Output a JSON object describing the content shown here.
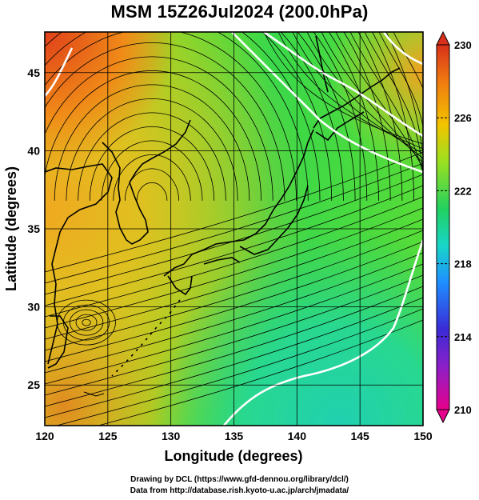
{
  "title": "MSM 15Z26Jul2024 (200.0hPa)",
  "map": {
    "xlabel": "Longitude (degrees)",
    "ylabel": "Latitude  (degrees)",
    "lon_range": [
      120,
      150
    ],
    "lat_range": [
      22.4,
      47.6
    ],
    "lon_ticks": [
      "120",
      "125",
      "130",
      "135",
      "140",
      "145",
      "150"
    ],
    "lat_ticks": [
      "25",
      "30",
      "35",
      "40",
      "45"
    ],
    "grid": "on",
    "fields": [
      "temperature shading",
      "streamlines",
      "coastlines"
    ]
  },
  "colorbar": {
    "min": 210,
    "max": 230,
    "labels": [
      "230",
      "226",
      "222",
      "218",
      "214",
      "210"
    ],
    "colors": [
      "#e8008c",
      "#3a2bd6",
      "#1e90ff",
      "#18d6c8",
      "#22d160",
      "#9be020",
      "#f2c400",
      "#f07a10",
      "#d8301a"
    ]
  },
  "credits": {
    "line1": "Drawing by DCL (https://www.gfd-dennou.org/library/dcl/)",
    "line2": "Data from http://database.rish.kyoto-u.ac.jp/arch/jmadata/"
  }
}
